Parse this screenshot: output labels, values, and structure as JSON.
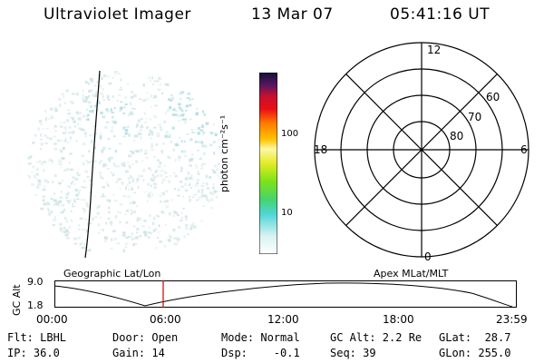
{
  "header": {
    "title": "Ultraviolet Imager",
    "date": "13 Mar 07",
    "time": "05:41:16 UT"
  },
  "colorbar": {
    "unit_label": "photon cm⁻²s⁻¹",
    "ticks": [
      "100",
      "10"
    ]
  },
  "polar_plot": {
    "mlt_labels": {
      "top": "12",
      "left": "18",
      "right": "6",
      "bottom": "0"
    },
    "lat_labels": [
      "60",
      "70",
      "80"
    ]
  },
  "timeline": {
    "ylabel": "GC Alt",
    "ymax": "9.0",
    "ymin": "1.8",
    "left_caption": "Geographic Lat/Lon",
    "right_caption": "Apex MLat/MLT",
    "xticks": [
      "00:00",
      "06:00",
      "12:00",
      "18:00",
      "23:59"
    ]
  },
  "info": {
    "row1": {
      "flt": "Flt: LBHL",
      "door": "Door: Open",
      "mode": "Mode: Normal",
      "gcalt": "GC Alt: 2.2 Re",
      "glat": "GLat:  28.7"
    },
    "row2": {
      "ip": "IP: 36.0",
      "gain": "Gain: 14",
      "dsp": "Dsp:    -0.1",
      "seq": "Seq: 39",
      "glon": "GLon: 255.0"
    }
  },
  "colors": {
    "speckle": "#cfe3e4",
    "speckle_dense": "#b4dde0",
    "marker": "#cc0000"
  }
}
